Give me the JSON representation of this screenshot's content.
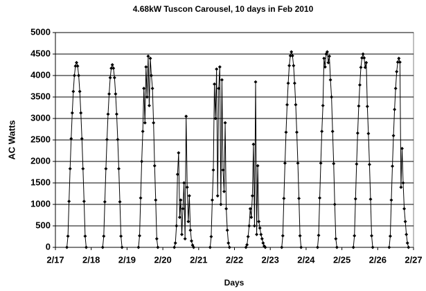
{
  "chart_data": {
    "type": "line",
    "markers": true,
    "title": "4.68kW Tuscon Carousel, 10 days in Feb 2010",
    "xlabel": "Days",
    "ylabel": "AC Watts",
    "color": "#000000",
    "grid": true,
    "xlim": [
      17,
      27
    ],
    "xticks": [
      {
        "value": 17,
        "label": "2/17"
      },
      {
        "value": 18,
        "label": "2/18"
      },
      {
        "value": 19,
        "label": "2/19"
      },
      {
        "value": 20,
        "label": "2/20"
      },
      {
        "value": 21,
        "label": "2/21"
      },
      {
        "value": 22,
        "label": "2/22"
      },
      {
        "value": 23,
        "label": "2/23"
      },
      {
        "value": 24,
        "label": "2/24"
      },
      {
        "value": 25,
        "label": "2/25"
      },
      {
        "value": 26,
        "label": "2/26"
      },
      {
        "value": 27,
        "label": "2/27"
      }
    ],
    "ylim": [
      0,
      5000
    ],
    "yticks": [
      0,
      500,
      1000,
      1500,
      2000,
      2500,
      3000,
      3500,
      4000,
      4500,
      5000
    ],
    "x": [
      17.32,
      17.35,
      17.38,
      17.41,
      17.44,
      17.47,
      17.5,
      17.53,
      17.56,
      17.59,
      17.62,
      17.65,
      17.68,
      17.71,
      17.74,
      17.77,
      17.8,
      17.83,
      17.86,
      18.32,
      18.35,
      18.38,
      18.41,
      18.44,
      18.47,
      18.5,
      18.53,
      18.56,
      18.59,
      18.62,
      18.65,
      18.68,
      18.71,
      18.74,
      18.77,
      18.8,
      18.83,
      18.86,
      19.32,
      19.35,
      19.38,
      19.41,
      19.44,
      19.47,
      19.5,
      19.53,
      19.56,
      19.59,
      19.62,
      19.65,
      19.68,
      19.71,
      19.74,
      19.77,
      19.8,
      19.83,
      19.86,
      20.32,
      20.35,
      20.38,
      20.41,
      20.44,
      20.47,
      20.5,
      20.53,
      20.56,
      20.59,
      20.62,
      20.65,
      20.68,
      20.71,
      20.74,
      20.77,
      20.8,
      20.83,
      20.86,
      21.32,
      21.35,
      21.38,
      21.41,
      21.44,
      21.47,
      21.5,
      21.53,
      21.56,
      21.59,
      21.62,
      21.65,
      21.68,
      21.71,
      21.74,
      21.77,
      21.8,
      21.83,
      21.86,
      22.32,
      22.35,
      22.38,
      22.41,
      22.44,
      22.47,
      22.5,
      22.53,
      22.56,
      22.59,
      22.62,
      22.65,
      22.68,
      22.71,
      22.74,
      22.77,
      22.8,
      22.83,
      22.86,
      23.32,
      23.35,
      23.38,
      23.41,
      23.44,
      23.47,
      23.5,
      23.53,
      23.56,
      23.59,
      23.62,
      23.65,
      23.68,
      23.71,
      23.74,
      23.77,
      23.8,
      23.83,
      23.86,
      24.32,
      24.35,
      24.38,
      24.41,
      24.44,
      24.47,
      24.5,
      24.53,
      24.56,
      24.59,
      24.62,
      24.65,
      24.68,
      24.71,
      24.74,
      24.77,
      24.8,
      24.83,
      24.86,
      25.32,
      25.35,
      25.38,
      25.41,
      25.44,
      25.47,
      25.5,
      25.53,
      25.56,
      25.59,
      25.62,
      25.65,
      25.68,
      25.71,
      25.74,
      25.77,
      25.8,
      25.83,
      25.86,
      26.32,
      26.35,
      26.38,
      26.41,
      26.44,
      26.47,
      26.5,
      26.53,
      26.56,
      26.59,
      26.62,
      26.65,
      26.68,
      26.71,
      26.74,
      26.77,
      26.8,
      26.83,
      26.86
    ],
    "values": [
      0,
      260,
      1070,
      1830,
      2530,
      3130,
      3630,
      4000,
      4220,
      4300,
      4220,
      4000,
      3630,
      3130,
      2530,
      1830,
      1070,
      260,
      0,
      0,
      260,
      1060,
      1830,
      2510,
      3100,
      3570,
      3950,
      4170,
      4250,
      4170,
      3950,
      3570,
      3100,
      2510,
      1830,
      1060,
      260,
      0,
      0,
      270,
      1150,
      2000,
      2700,
      3700,
      2900,
      4200,
      3500,
      4450,
      3300,
      4400,
      4000,
      3700,
      2900,
      1900,
      1100,
      200,
      0,
      0,
      100,
      500,
      1700,
      2200,
      700,
      1100,
      300,
      900,
      1500,
      200,
      3050,
      1400,
      600,
      1200,
      400,
      150,
      50,
      0,
      0,
      250,
      1100,
      1800,
      3800,
      3000,
      4150,
      1200,
      3700,
      4200,
      1000,
      3900,
      1800,
      1300,
      2900,
      900,
      400,
      100,
      0,
      0,
      60,
      250,
      500,
      900,
      700,
      1200,
      2400,
      500,
      3850,
      300,
      1900,
      600,
      450,
      300,
      200,
      100,
      30,
      0,
      0,
      270,
      1140,
      1960,
      2680,
      3320,
      3820,
      4230,
      4460,
      4550,
      4460,
      4230,
      3820,
      3320,
      2680,
      1960,
      1140,
      270,
      0,
      0,
      280,
      1150,
      1960,
      2700,
      3300,
      4400,
      4200,
      4500,
      4550,
      4300,
      4450,
      3900,
      3500,
      2700,
      1950,
      1000,
      200,
      0,
      0,
      270,
      1130,
      1940,
      2660,
      3290,
      3780,
      4190,
      4410,
      4500,
      4410,
      4190,
      4300,
      3280,
      2650,
      1930,
      1120,
      270,
      0,
      0,
      260,
      1100,
      1890,
      2600,
      3210,
      3700,
      4090,
      4310,
      4400,
      4310,
      1400,
      2300,
      1500,
      900,
      600,
      300,
      100,
      0
    ]
  }
}
